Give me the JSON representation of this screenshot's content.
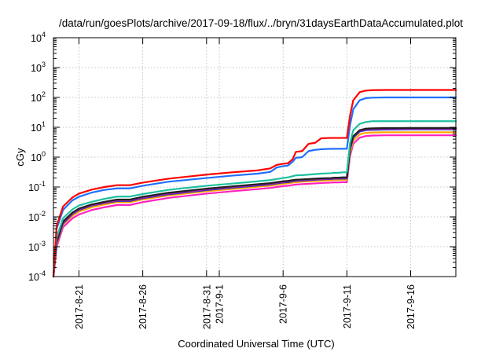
{
  "chart_data": {
    "type": "line",
    "title": "/data/run/goesPlots/archive/2017-09-18/flux/../bryn/31daysEarthDataAccumulated.plot",
    "xlabel": "Coordinated Universal Time (UTC)",
    "ylabel": "cGy",
    "y_scale": "log",
    "ylim": [
      0.0001,
      10000
    ],
    "y_ticks": [
      {
        "base": "10",
        "exp": "-4",
        "value": 0.0001
      },
      {
        "base": "10",
        "exp": "-3",
        "value": 0.001
      },
      {
        "base": "10",
        "exp": "-2",
        "value": 0.01
      },
      {
        "base": "10",
        "exp": "-1",
        "value": 0.1
      },
      {
        "base": "10",
        "exp": "0",
        "value": 1
      },
      {
        "base": "10",
        "exp": "1",
        "value": 10
      },
      {
        "base": "10",
        "exp": "2",
        "value": 100
      },
      {
        "base": "10",
        "exp": "3",
        "value": 1000
      },
      {
        "base": "10",
        "exp": "4",
        "value": 10000
      }
    ],
    "xlim": [
      "2017-08-19",
      "2017-09-19T13:00"
    ],
    "x_ticks": [
      "2017-8-21",
      "2017-8-26",
      "2017-8-31",
      "2017-9-1",
      "2017-9-6",
      "2017-9-11",
      "2017-9-16"
    ],
    "x_tick_dates": [
      "2017-08-21",
      "2017-08-26",
      "2017-08-31",
      "2017-09-01",
      "2017-09-06",
      "2017-09-11",
      "2017-09-16"
    ],
    "grid": true,
    "legend": "none",
    "series": [
      {
        "color": "#ff0000",
        "x": [
          "2017-08-19",
          "2017-08-19T06:00",
          "2017-08-19T18:00",
          "2017-08-20T12:00",
          "2017-08-21",
          "2017-08-22",
          "2017-08-23",
          "2017-08-24",
          "2017-08-25",
          "2017-08-26",
          "2017-08-28",
          "2017-08-31",
          "2017-09-02",
          "2017-09-04",
          "2017-09-05",
          "2017-09-05T12:00",
          "2017-09-06",
          "2017-09-06T09:00",
          "2017-09-06T18:00",
          "2017-09-07",
          "2017-09-07T12:00",
          "2017-09-08",
          "2017-09-08T12:00",
          "2017-09-09",
          "2017-09-09T18:00",
          "2017-09-10",
          "2017-09-10T08:00",
          "2017-09-10T16:00",
          "2017-09-10T23:00",
          "2017-09-11",
          "2017-09-11T06:00",
          "2017-09-11T12:00",
          "2017-09-12",
          "2017-09-12T12:00",
          "2017-09-13",
          "2017-09-14",
          "2017-09-16",
          "2017-09-19T13:00"
        ],
        "values": [
          0.0001,
          0.005,
          0.022,
          0.045,
          0.06,
          0.082,
          0.1,
          0.115,
          0.115,
          0.14,
          0.19,
          0.26,
          0.31,
          0.36,
          0.42,
          0.55,
          0.6,
          0.62,
          0.85,
          1.5,
          1.6,
          2.8,
          3.0,
          4.3,
          4.4,
          4.4,
          4.4,
          4.4,
          4.4,
          4.4,
          25,
          80,
          150,
          170,
          175,
          178,
          178,
          178
        ]
      },
      {
        "color": "#1f6fff",
        "x": [
          "2017-08-19",
          "2017-08-19T06:00",
          "2017-08-19T18:00",
          "2017-08-20T12:00",
          "2017-08-21",
          "2017-08-22",
          "2017-08-23",
          "2017-08-24",
          "2017-08-25",
          "2017-08-26",
          "2017-08-28",
          "2017-08-31",
          "2017-09-02",
          "2017-09-04",
          "2017-09-05",
          "2017-09-05T12:00",
          "2017-09-06",
          "2017-09-06T09:00",
          "2017-09-06T18:00",
          "2017-09-07",
          "2017-09-07T12:00",
          "2017-09-08",
          "2017-09-08T12:00",
          "2017-09-09",
          "2017-09-09T18:00",
          "2017-09-10",
          "2017-09-10T08:00",
          "2017-09-10T16:00",
          "2017-09-10T23:00",
          "2017-09-11",
          "2017-09-11T06:00",
          "2017-09-11T12:00",
          "2017-09-12",
          "2017-09-12T12:00",
          "2017-09-13",
          "2017-09-14",
          "2017-09-16",
          "2017-09-19T13:00"
        ],
        "values": [
          0.0001,
          0.004,
          0.017,
          0.036,
          0.047,
          0.065,
          0.08,
          0.09,
          0.09,
          0.11,
          0.15,
          0.2,
          0.24,
          0.28,
          0.32,
          0.45,
          0.5,
          0.52,
          0.7,
          0.95,
          1.0,
          1.6,
          1.75,
          1.85,
          1.9,
          1.9,
          1.9,
          1.9,
          1.9,
          1.9,
          12,
          40,
          80,
          95,
          98,
          100,
          100,
          100
        ]
      },
      {
        "color": "#1fc0a0",
        "x": [
          "2017-08-19",
          "2017-08-19T06:00",
          "2017-08-19T18:00",
          "2017-08-20T12:00",
          "2017-08-21",
          "2017-08-22",
          "2017-08-23",
          "2017-08-24",
          "2017-08-25",
          "2017-08-26",
          "2017-08-28",
          "2017-08-31",
          "2017-09-02",
          "2017-09-04",
          "2017-09-05",
          "2017-09-05T12:00",
          "2017-09-06",
          "2017-09-06T09:00",
          "2017-09-06T18:00",
          "2017-09-07",
          "2017-09-07T12:00",
          "2017-09-08",
          "2017-09-08T12:00",
          "2017-09-09",
          "2017-09-09T18:00",
          "2017-09-10",
          "2017-09-10T08:00",
          "2017-09-10T16:00",
          "2017-09-10T23:00",
          "2017-09-11",
          "2017-09-11T06:00",
          "2017-09-11T12:00",
          "2017-09-12",
          "2017-09-12T12:00",
          "2017-09-13",
          "2017-09-14",
          "2017-09-16",
          "2017-09-19T13:00"
        ],
        "values": [
          0.0001,
          0.002,
          0.009,
          0.018,
          0.024,
          0.032,
          0.04,
          0.048,
          0.048,
          0.058,
          0.08,
          0.11,
          0.13,
          0.155,
          0.17,
          0.185,
          0.2,
          0.21,
          0.23,
          0.245,
          0.25,
          0.26,
          0.27,
          0.28,
          0.29,
          0.3,
          0.3,
          0.31,
          0.31,
          0.31,
          3,
          8,
          13,
          15,
          16,
          16,
          16,
          16
        ]
      },
      {
        "color": "#202020",
        "x": [
          "2017-08-19",
          "2017-08-19T06:00",
          "2017-08-19T18:00",
          "2017-08-20T12:00",
          "2017-08-21",
          "2017-08-22",
          "2017-08-23",
          "2017-08-24",
          "2017-08-25",
          "2017-08-26",
          "2017-08-28",
          "2017-08-31",
          "2017-09-02",
          "2017-09-04",
          "2017-09-05",
          "2017-09-05T12:00",
          "2017-09-06",
          "2017-09-06T09:00",
          "2017-09-06T18:00",
          "2017-09-07",
          "2017-09-07T12:00",
          "2017-09-08",
          "2017-09-08T12:00",
          "2017-09-09",
          "2017-09-09T18:00",
          "2017-09-10",
          "2017-09-10T08:00",
          "2017-09-10T16:00",
          "2017-09-10T23:00",
          "2017-09-11",
          "2017-09-11T06:00",
          "2017-09-11T12:00",
          "2017-09-12",
          "2017-09-12T12:00",
          "2017-09-13",
          "2017-09-14",
          "2017-09-16",
          "2017-09-19T13:00"
        ],
        "values": [
          0.0001,
          0.0015,
          0.007,
          0.014,
          0.019,
          0.026,
          0.032,
          0.038,
          0.038,
          0.047,
          0.064,
          0.088,
          0.105,
          0.124,
          0.135,
          0.145,
          0.155,
          0.16,
          0.17,
          0.175,
          0.18,
          0.185,
          0.19,
          0.195,
          0.2,
          0.205,
          0.205,
          0.21,
          0.21,
          0.21,
          2,
          5,
          8,
          9,
          9.2,
          9.4,
          9.5,
          9.5
        ]
      },
      {
        "color": "#b01fb0",
        "x": [
          "2017-08-19",
          "2017-08-19T06:00",
          "2017-08-19T18:00",
          "2017-08-20T12:00",
          "2017-08-21",
          "2017-08-22",
          "2017-08-23",
          "2017-08-24",
          "2017-08-25",
          "2017-08-26",
          "2017-08-28",
          "2017-08-31",
          "2017-09-02",
          "2017-09-04",
          "2017-09-05",
          "2017-09-05T12:00",
          "2017-09-06",
          "2017-09-06T09:00",
          "2017-09-06T18:00",
          "2017-09-07",
          "2017-09-07T12:00",
          "2017-09-08",
          "2017-09-08T12:00",
          "2017-09-09",
          "2017-09-09T18:00",
          "2017-09-10",
          "2017-09-10T08:00",
          "2017-09-10T16:00",
          "2017-09-10T23:00",
          "2017-09-11",
          "2017-09-11T06:00",
          "2017-09-11T12:00",
          "2017-09-12",
          "2017-09-12T12:00",
          "2017-09-13",
          "2017-09-14",
          "2017-09-16",
          "2017-09-19T13:00"
        ],
        "values": [
          0.0001,
          0.0014,
          0.0065,
          0.013,
          0.018,
          0.025,
          0.03,
          0.036,
          0.036,
          0.044,
          0.06,
          0.083,
          0.1,
          0.118,
          0.128,
          0.138,
          0.148,
          0.152,
          0.162,
          0.167,
          0.172,
          0.177,
          0.182,
          0.187,
          0.192,
          0.197,
          0.197,
          0.2,
          0.2,
          0.2,
          1.9,
          4.8,
          7.7,
          8.5,
          8.8,
          9.0,
          9.0,
          9.0
        ]
      },
      {
        "color": "#2030c0",
        "x": [
          "2017-08-19",
          "2017-08-19T06:00",
          "2017-08-19T18:00",
          "2017-08-20T12:00",
          "2017-08-21",
          "2017-08-22",
          "2017-08-23",
          "2017-08-24",
          "2017-08-25",
          "2017-08-26",
          "2017-08-28",
          "2017-08-31",
          "2017-09-02",
          "2017-09-04",
          "2017-09-05",
          "2017-09-05T12:00",
          "2017-09-06",
          "2017-09-06T09:00",
          "2017-09-06T18:00",
          "2017-09-07",
          "2017-09-07T12:00",
          "2017-09-08",
          "2017-09-08T12:00",
          "2017-09-09",
          "2017-09-09T18:00",
          "2017-09-10",
          "2017-09-10T08:00",
          "2017-09-10T16:00",
          "2017-09-10T23:00",
          "2017-09-11",
          "2017-09-11T06:00",
          "2017-09-11T12:00",
          "2017-09-12",
          "2017-09-12T12:00",
          "2017-09-13",
          "2017-09-14",
          "2017-09-16",
          "2017-09-19T13:00"
        ],
        "values": [
          0.0001,
          0.0013,
          0.006,
          0.0125,
          0.017,
          0.024,
          0.029,
          0.034,
          0.034,
          0.042,
          0.057,
          0.079,
          0.095,
          0.112,
          0.122,
          0.132,
          0.141,
          0.145,
          0.155,
          0.16,
          0.165,
          0.17,
          0.175,
          0.18,
          0.185,
          0.19,
          0.19,
          0.192,
          0.192,
          0.192,
          1.8,
          4.5,
          7.2,
          8.0,
          8.2,
          8.4,
          8.5,
          8.5
        ]
      },
      {
        "color": "#ffa500",
        "x": [
          "2017-08-19",
          "2017-08-19T06:00",
          "2017-08-19T18:00",
          "2017-08-20T12:00",
          "2017-08-21",
          "2017-08-22",
          "2017-08-23",
          "2017-08-24",
          "2017-08-25",
          "2017-08-26",
          "2017-08-28",
          "2017-08-31",
          "2017-09-02",
          "2017-09-04",
          "2017-09-05",
          "2017-09-05T12:00",
          "2017-09-06",
          "2017-09-06T09:00",
          "2017-09-06T18:00",
          "2017-09-07",
          "2017-09-07T12:00",
          "2017-09-08",
          "2017-09-08T12:00",
          "2017-09-09",
          "2017-09-09T18:00",
          "2017-09-10",
          "2017-09-10T08:00",
          "2017-09-10T16:00",
          "2017-09-10T23:00",
          "2017-09-11",
          "2017-09-11T06:00",
          "2017-09-11T12:00",
          "2017-09-12",
          "2017-09-12T12:00",
          "2017-09-13",
          "2017-09-14",
          "2017-09-16",
          "2017-09-19T13:00"
        ],
        "values": [
          0.0001,
          0.0012,
          0.0055,
          0.011,
          0.015,
          0.021,
          0.026,
          0.031,
          0.031,
          0.038,
          0.052,
          0.072,
          0.086,
          0.102,
          0.111,
          0.12,
          0.128,
          0.132,
          0.14,
          0.145,
          0.15,
          0.154,
          0.158,
          0.163,
          0.167,
          0.172,
          0.172,
          0.175,
          0.175,
          0.175,
          1.4,
          3.6,
          5.8,
          6.5,
          6.7,
          6.8,
          6.8,
          6.8
        ]
      },
      {
        "color": "#ff20c0",
        "x": [
          "2017-08-19",
          "2017-08-19T06:00",
          "2017-08-19T18:00",
          "2017-08-20T12:00",
          "2017-08-21",
          "2017-08-22",
          "2017-08-23",
          "2017-08-24",
          "2017-08-25",
          "2017-08-26",
          "2017-08-28",
          "2017-08-31",
          "2017-09-02",
          "2017-09-04",
          "2017-09-05",
          "2017-09-05T12:00",
          "2017-09-06",
          "2017-09-06T09:00",
          "2017-09-06T18:00",
          "2017-09-07",
          "2017-09-07T12:00",
          "2017-09-08",
          "2017-09-08T12:00",
          "2017-09-09",
          "2017-09-09T18:00",
          "2017-09-10",
          "2017-09-10T08:00",
          "2017-09-10T16:00",
          "2017-09-10T23:00",
          "2017-09-11",
          "2017-09-11T06:00",
          "2017-09-11T12:00",
          "2017-09-12",
          "2017-09-12T12:00",
          "2017-09-13",
          "2017-09-14",
          "2017-09-16",
          "2017-09-19T13:00"
        ],
        "values": [
          0.0001,
          0.001,
          0.0045,
          0.009,
          0.012,
          0.017,
          0.021,
          0.025,
          0.025,
          0.031,
          0.043,
          0.06,
          0.072,
          0.085,
          0.093,
          0.1,
          0.107,
          0.11,
          0.117,
          0.121,
          0.125,
          0.128,
          0.132,
          0.136,
          0.14,
          0.143,
          0.143,
          0.145,
          0.145,
          0.145,
          1.1,
          2.8,
          4.5,
          5.1,
          5.3,
          5.4,
          5.4,
          5.4
        ]
      }
    ]
  }
}
